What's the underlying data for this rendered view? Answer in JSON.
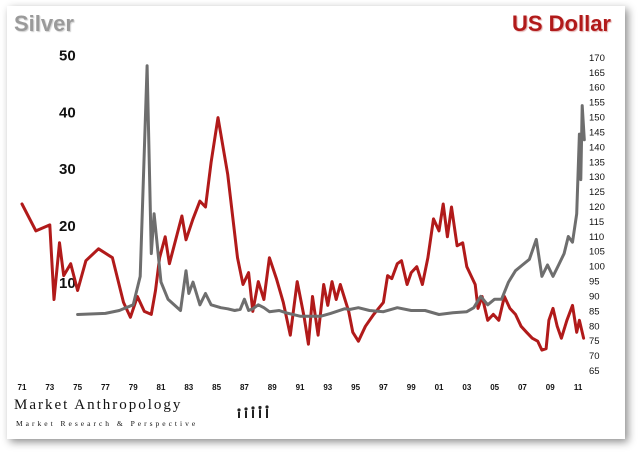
{
  "left_title": "Silver",
  "right_title": "US Dollar",
  "logo": {
    "name": "Market Anthropology",
    "tagline": "Market Research & Perspective"
  },
  "chart_data": {
    "type": "line",
    "x_ticks": [
      "71",
      "73",
      "75",
      "77",
      "79",
      "81",
      "83",
      "85",
      "87",
      "89",
      "91",
      "93",
      "95",
      "97",
      "99",
      "01",
      "03",
      "05",
      "07",
      "09",
      "11"
    ],
    "y_left": {
      "ticks": [
        10,
        20,
        30,
        40,
        50
      ],
      "range": [
        0,
        52
      ]
    },
    "y_right": {
      "ticks": [
        65,
        70,
        75,
        80,
        85,
        90,
        95,
        100,
        105,
        110,
        115,
        120,
        125,
        130,
        135,
        140,
        145,
        150,
        155,
        160,
        165,
        170
      ],
      "range": [
        64,
        174
      ]
    },
    "series": [
      {
        "name": "US Dollar",
        "axis": "right",
        "color": "#b11a1a",
        "points": [
          [
            1971,
            121
          ],
          [
            1972,
            112
          ],
          [
            1973,
            114
          ],
          [
            1973.3,
            89
          ],
          [
            1973.7,
            108
          ],
          [
            1974,
            97
          ],
          [
            1974.5,
            101
          ],
          [
            1975,
            92
          ],
          [
            1975.6,
            102
          ],
          [
            1976.5,
            106
          ],
          [
            1977.5,
            103
          ],
          [
            1978.3,
            88
          ],
          [
            1978.8,
            83
          ],
          [
            1979.3,
            90
          ],
          [
            1979.8,
            85
          ],
          [
            1980.3,
            84
          ],
          [
            1980.6,
            92
          ],
          [
            1980.9,
            103
          ],
          [
            1981.3,
            110
          ],
          [
            1981.6,
            101
          ],
          [
            1982,
            108
          ],
          [
            1982.5,
            117
          ],
          [
            1982.8,
            109
          ],
          [
            1983.3,
            116
          ],
          [
            1983.8,
            122
          ],
          [
            1984.2,
            120
          ],
          [
            1984.6,
            135
          ],
          [
            1985.1,
            150
          ],
          [
            1985.8,
            131
          ],
          [
            1986.5,
            103
          ],
          [
            1986.9,
            94
          ],
          [
            1987.3,
            98
          ],
          [
            1987.6,
            85
          ],
          [
            1988,
            95
          ],
          [
            1988.4,
            89
          ],
          [
            1988.8,
            103
          ],
          [
            1989.3,
            96
          ],
          [
            1989.8,
            88
          ],
          [
            1990.3,
            77
          ],
          [
            1990.8,
            95
          ],
          [
            1991.3,
            83
          ],
          [
            1991.6,
            74
          ],
          [
            1991.9,
            90
          ],
          [
            1992.3,
            77
          ],
          [
            1992.7,
            94
          ],
          [
            1993,
            87
          ],
          [
            1993.3,
            95
          ],
          [
            1993.6,
            89
          ],
          [
            1993.9,
            94
          ],
          [
            1994.5,
            85
          ],
          [
            1994.8,
            78
          ],
          [
            1995.2,
            75
          ],
          [
            1995.7,
            80
          ],
          [
            1996.3,
            84
          ],
          [
            1997,
            88
          ],
          [
            1997.3,
            97
          ],
          [
            1997.6,
            96
          ],
          [
            1998,
            101
          ],
          [
            1998.3,
            102
          ],
          [
            1998.7,
            94
          ],
          [
            1999,
            98
          ],
          [
            1999.4,
            100
          ],
          [
            1999.8,
            94
          ],
          [
            2000.2,
            103
          ],
          [
            2000.6,
            116
          ],
          [
            2001,
            112
          ],
          [
            2001.3,
            121
          ],
          [
            2001.6,
            110
          ],
          [
            2001.9,
            120
          ],
          [
            2002.3,
            107
          ],
          [
            2002.7,
            108
          ],
          [
            2003,
            100
          ],
          [
            2003.3,
            97
          ],
          [
            2003.6,
            94
          ],
          [
            2003.8,
            86
          ],
          [
            2004.1,
            90
          ],
          [
            2004.5,
            82
          ],
          [
            2004.9,
            84
          ],
          [
            2005.3,
            82
          ],
          [
            2005.7,
            90
          ],
          [
            2006.1,
            86
          ],
          [
            2006.5,
            84
          ],
          [
            2006.9,
            80
          ],
          [
            2007.3,
            78
          ],
          [
            2007.7,
            76
          ],
          [
            2008.1,
            75
          ],
          [
            2008.4,
            72
          ],
          [
            2008.7,
            72.5
          ],
          [
            2008.9,
            82
          ],
          [
            2009.2,
            86
          ],
          [
            2009.5,
            80
          ],
          [
            2009.8,
            76
          ],
          [
            2010.2,
            82
          ],
          [
            2010.6,
            87
          ],
          [
            2010.9,
            78
          ],
          [
            2011.1,
            82
          ],
          [
            2011.4,
            76
          ]
        ]
      },
      {
        "name": "Silver",
        "axis": "left",
        "color": "#6e6e6e",
        "points": [
          [
            1975,
            4.3
          ],
          [
            1977,
            4.5
          ],
          [
            1978,
            5
          ],
          [
            1979,
            6
          ],
          [
            1979.5,
            11
          ],
          [
            1980,
            48
          ],
          [
            1980.3,
            15
          ],
          [
            1980.5,
            22
          ],
          [
            1981,
            10
          ],
          [
            1981.5,
            7
          ],
          [
            1982.4,
            5
          ],
          [
            1982.8,
            12
          ],
          [
            1983,
            8
          ],
          [
            1983.3,
            10
          ],
          [
            1983.8,
            6
          ],
          [
            1984.2,
            8
          ],
          [
            1984.6,
            6
          ],
          [
            1985.3,
            5.5
          ],
          [
            1985.8,
            5.3
          ],
          [
            1986.3,
            5
          ],
          [
            1986.7,
            5.2
          ],
          [
            1987,
            7
          ],
          [
            1987.3,
            5
          ],
          [
            1987.6,
            5.3
          ],
          [
            1988,
            6
          ],
          [
            1988.4,
            5.5
          ],
          [
            1988.8,
            4.8
          ],
          [
            1989.5,
            5
          ],
          [
            1990,
            4.6
          ],
          [
            1991,
            4
          ],
          [
            1992.5,
            4
          ],
          [
            1993.2,
            4.5
          ],
          [
            1994.2,
            5.3
          ],
          [
            1994.6,
            5.2
          ],
          [
            1995.2,
            5.5
          ],
          [
            1996,
            5
          ],
          [
            1997,
            4.8
          ],
          [
            1998,
            5.5
          ],
          [
            1999,
            5
          ],
          [
            2000,
            5
          ],
          [
            2001,
            4.3
          ],
          [
            2002,
            4.6
          ],
          [
            2003,
            4.8
          ],
          [
            2003.5,
            5.5
          ],
          [
            2004,
            7.5
          ],
          [
            2004.5,
            6
          ],
          [
            2005,
            7
          ],
          [
            2005.5,
            7
          ],
          [
            2006,
            10
          ],
          [
            2006.5,
            12
          ],
          [
            2007,
            13
          ],
          [
            2007.5,
            14
          ],
          [
            2008,
            17.5
          ],
          [
            2008.4,
            11
          ],
          [
            2008.8,
            13
          ],
          [
            2009.2,
            11
          ],
          [
            2009.6,
            13
          ],
          [
            2010,
            15
          ],
          [
            2010.3,
            18
          ],
          [
            2010.6,
            17
          ],
          [
            2010.9,
            22
          ],
          [
            2011.1,
            36
          ],
          [
            2011.2,
            28
          ],
          [
            2011.3,
            41
          ],
          [
            2011.45,
            35
          ]
        ]
      }
    ]
  }
}
